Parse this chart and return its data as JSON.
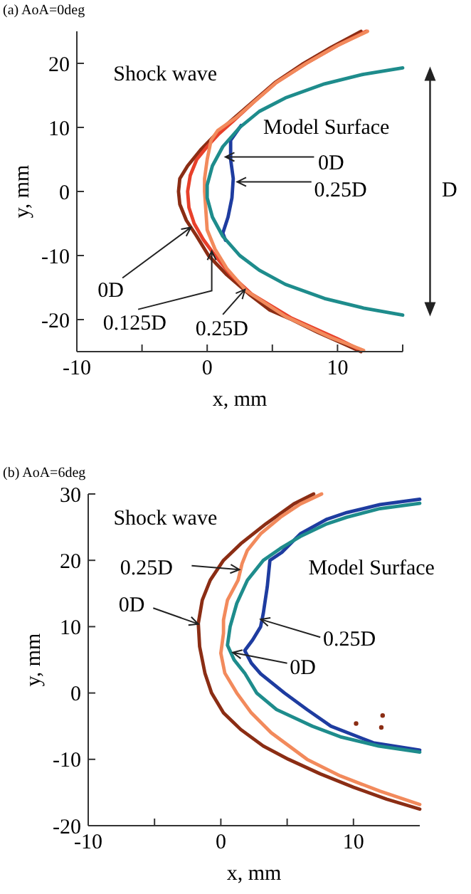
{
  "chart_data": [
    {
      "type": "line",
      "title": "(a) AoA=0deg",
      "xlabel": "x, mm",
      "ylabel": "y, mm",
      "xlim": [
        -10,
        15
      ],
      "ylim": [
        -25,
        25
      ],
      "xticks": [
        -10,
        {
          "value": -5,
          "label": null
        },
        0,
        {
          "value": 5,
          "label": null
        },
        10,
        {
          "value": 15,
          "label": null
        }
      ],
      "yticks": [
        -20,
        -10,
        0,
        10,
        20
      ],
      "marker": "none",
      "grid": false,
      "series": [
        {
          "color": "#8b2d14",
          "x": [
            11.8,
            9.5,
            7.4,
            5.2,
            3.5,
            1.8,
            0.7,
            -0.5,
            -1.5,
            -2.1,
            -2.2,
            -2.1,
            -1.6,
            -0.8,
            0.1,
            1.5,
            3.2,
            4.8,
            6.5,
            8.5,
            10.5,
            11.8
          ],
          "values": [
            25,
            22.5,
            20,
            17,
            14,
            11,
            9,
            6.5,
            4,
            2,
            0,
            -2,
            -4.5,
            -7,
            -10,
            -13,
            -16,
            -18.5,
            -20,
            -22,
            -23.8,
            -25
          ]
        },
        {
          "color": "#e8402a",
          "x": [
            12.2,
            10,
            7.6,
            5.3,
            3.6,
            2,
            0.9,
            0,
            -0.8,
            -1.3,
            -1.5,
            -1.4,
            -1,
            -0.3,
            0.6,
            1.8,
            3.4,
            6.5,
            10,
            11.5
          ],
          "values": [
            25,
            22.8,
            20,
            17,
            14,
            11,
            9,
            7,
            5,
            2.5,
            0,
            -2.5,
            -5,
            -7.5,
            -10,
            -13,
            -16,
            -19.8,
            -23,
            -24.5
          ]
        },
        {
          "color": "#f28a5c",
          "x": [
            12.3,
            10,
            7.6,
            5.3,
            3.6,
            2.2,
            0.8,
            0.3,
            0,
            -0.2,
            -0.2,
            -0.1,
            0,
            0.6,
            1.5,
            3,
            6,
            9.5,
            12
          ],
          "values": [
            25,
            22.8,
            20,
            17,
            14,
            11.5,
            9.5,
            8,
            5,
            2,
            0,
            -3,
            -6,
            -9,
            -12,
            -15.5,
            -19.5,
            -22.8,
            -24.8
          ]
        },
        {
          "color": "#1e3ca0",
          "x": [
            2.6,
            1.8,
            1.8,
            2,
            1.9,
            1.6,
            1.2,
            1.4
          ],
          "values": [
            10.3,
            8,
            5,
            2,
            -1,
            -4,
            -6.5,
            -7.6
          ]
        },
        {
          "color": "#1e8c8c",
          "x": [
            15,
            12,
            9,
            6,
            4,
            2.5,
            1.2,
            0.4,
            0,
            0,
            0.4,
            1.2,
            2.5,
            4,
            6,
            9,
            12,
            15
          ],
          "values": [
            19.3,
            18.3,
            16.8,
            14.6,
            12.5,
            10,
            7,
            4,
            1,
            -1,
            -4,
            -7,
            -10,
            -12.3,
            -14.5,
            -16.7,
            -18.2,
            -19.3
          ]
        }
      ],
      "annotations": [
        "Shock wave",
        "Model Surface",
        {
          "text": "0D",
          "x": 1.4,
          "y": 5.4
        },
        {
          "text": "0.25D",
          "x": 2.3,
          "y": 1.5
        },
        {
          "text": "0D",
          "x": -1.25,
          "y": -5.6
        },
        {
          "text": "0.125D",
          "x": 0.35,
          "y": -9.3
        },
        {
          "text": "0.25D",
          "x": 2.9,
          "y": -15.3
        },
        "D"
      ]
    },
    {
      "type": "line",
      "title": "(b) AoA=6deg",
      "xlabel": "x,  mm",
      "ylabel": "y, mm",
      "xlim": [
        -10,
        15
      ],
      "ylim": [
        -20,
        30
      ],
      "xticks": [
        -10,
        {
          "value": -5,
          "label": null
        },
        0,
        {
          "value": 5,
          "label": null
        },
        10
      ],
      "yticks": [
        -20,
        -10,
        0,
        10,
        20,
        30
      ],
      "marker": "none",
      "grid": false,
      "series": [
        {
          "color": "#8b2d14",
          "x": [
            7,
            5.5,
            3.4,
            1.5,
            0.2,
            -0.8,
            -1.4,
            -1.7,
            -1.6,
            -1.2,
            -0.7,
            0.2,
            1.5,
            3.2,
            5.1,
            7.5,
            10,
            12.5,
            15
          ],
          "values": [
            30,
            28.5,
            25.5,
            22.5,
            20,
            17,
            14,
            10.5,
            7,
            3,
            0,
            -3,
            -5.5,
            -8,
            -10,
            -12.2,
            -14.2,
            -16,
            -17.5
          ]
        },
        {
          "color": "#f28a5c",
          "x": [
            7.6,
            6,
            4.5,
            3,
            2,
            1.6,
            1.3,
            0.5,
            0.2,
            0.2,
            0,
            0.3,
            1.2,
            2.3,
            3.8,
            6.5,
            9,
            12,
            15
          ],
          "values": [
            30,
            28.5,
            26.5,
            24,
            21.5,
            19.5,
            17,
            14,
            11,
            9,
            6,
            3,
            0,
            -3,
            -6,
            -10,
            -12.5,
            -14.8,
            -16.8
          ]
        },
        {
          "color": "#1e3ca0",
          "x": [
            15,
            12,
            9.5,
            8,
            6,
            4.6,
            3.7,
            3.5,
            3.2,
            3,
            2.4,
            1.8,
            2.3,
            3,
            4.8,
            6.5,
            8.3,
            11.5,
            15
          ],
          "values": [
            29.2,
            28.4,
            27.2,
            26.2,
            24,
            21.2,
            20,
            16,
            12,
            10,
            8,
            6.4,
            4.5,
            2.9,
            0,
            -2.5,
            -5,
            -7.5,
            -8.6
          ]
        },
        {
          "color": "#1e8c8c",
          "x": [
            15,
            12,
            9.5,
            8,
            6,
            4.5,
            3.2,
            2,
            1.2,
            0.7,
            0.5,
            1,
            1.8,
            2.7,
            4.2,
            6.9,
            9,
            11.9,
            15
          ],
          "values": [
            28.6,
            27.8,
            26.5,
            25.5,
            23.6,
            21.8,
            20,
            17,
            13.5,
            10,
            7.2,
            5,
            3,
            0,
            -2.5,
            -5,
            -6.6,
            -8,
            -8.9
          ]
        },
        {
          "type": "scatter",
          "marker": "circle",
          "color": "#8b2d14",
          "x": [
            10.2,
            12.2,
            12.1
          ],
          "values": [
            -4.6,
            -3.4,
            -5.2
          ]
        }
      ],
      "annotations": [
        "Shock wave",
        "Model Surface",
        {
          "text": "0.25D",
          "x": 1.4,
          "y": 18.6
        },
        {
          "text": "0D",
          "x": -1.7,
          "y": 10.4
        },
        {
          "text": "0.25D",
          "x": 3,
          "y": 11.1
        },
        {
          "text": "0D",
          "x": 0.9,
          "y": 6.1
        }
      ]
    }
  ]
}
